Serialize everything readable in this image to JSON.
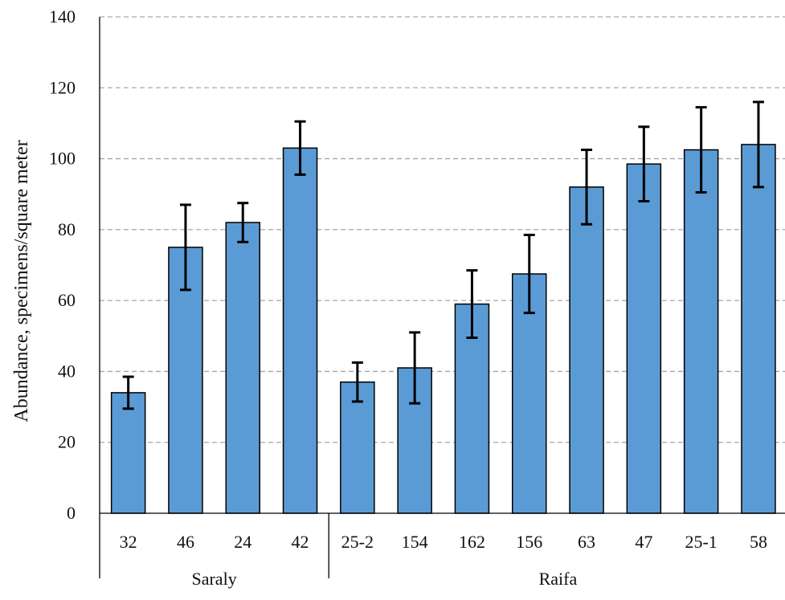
{
  "chart_data": {
    "type": "bar",
    "ylabel": "Abundance, specimens/square meter",
    "xlabel": "",
    "ylim": [
      0,
      140
    ],
    "yticks": [
      0,
      20,
      40,
      60,
      80,
      100,
      120,
      140
    ],
    "grid": true,
    "bar_color": "#5b9bd5",
    "categories": [
      "32",
      "46",
      "24",
      "42",
      "25-2",
      "154",
      "162",
      "156",
      "63",
      "47",
      "25-1",
      "58"
    ],
    "values": [
      34,
      75,
      82,
      103,
      37,
      41,
      59,
      67.5,
      92,
      98.5,
      102.5,
      104
    ],
    "errors": [
      4.5,
      12,
      5.5,
      7.5,
      5.5,
      10,
      9.5,
      11,
      10.5,
      10.5,
      12,
      12
    ],
    "groups": [
      {
        "label": "Saraly",
        "count": 4
      },
      {
        "label": "Raifa",
        "count": 8
      }
    ]
  }
}
